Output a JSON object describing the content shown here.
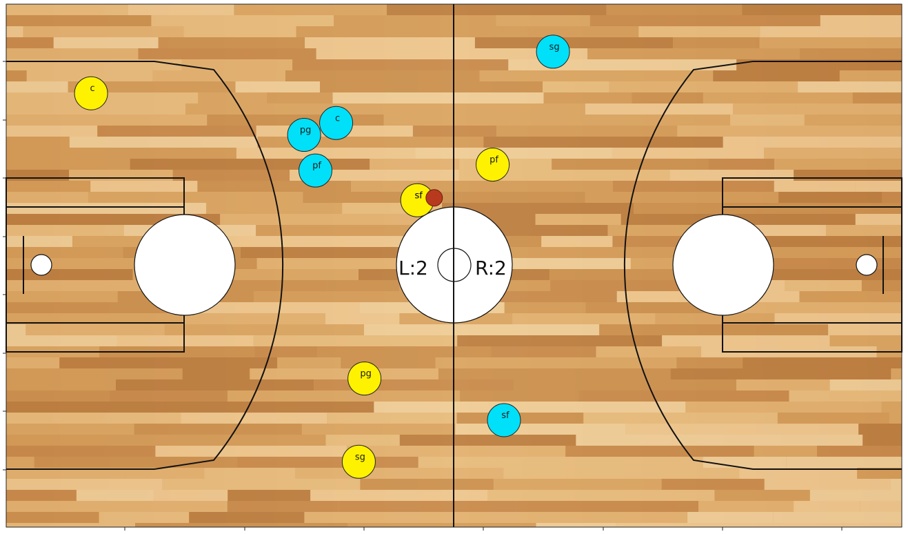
{
  "score": {
    "left_text": "L:2",
    "right_text": "R:2"
  },
  "colors": {
    "team_left": "#fff200",
    "team_right": "#00e0f8",
    "ball": "#b83a1e",
    "court_line": "#111111",
    "wood_light": "#e6b878",
    "wood_dark": "#b4743a"
  },
  "players": [
    {
      "team": "left",
      "label": "c",
      "x": 4.5,
      "y": 36.5
    },
    {
      "team": "left",
      "label": "pf",
      "x": 25.8,
      "y": 30.5
    },
    {
      "team": "left",
      "label": "sf",
      "x": 21.8,
      "y": 27.5
    },
    {
      "team": "left",
      "label": "pg",
      "x": 19.0,
      "y": 12.5
    },
    {
      "team": "left",
      "label": "sg",
      "x": 18.7,
      "y": 5.5
    },
    {
      "team": "right",
      "label": "sg",
      "x": 29.0,
      "y": 40.0
    },
    {
      "team": "right",
      "label": "c",
      "x": 17.5,
      "y": 34.0
    },
    {
      "team": "right",
      "label": "pg",
      "x": 15.8,
      "y": 33.0
    },
    {
      "team": "right",
      "label": "pf",
      "x": 16.4,
      "y": 30.0
    },
    {
      "team": "right",
      "label": "sf",
      "x": 26.4,
      "y": 9.0
    }
  ],
  "ball": {
    "x": 22.7,
    "y": 27.7
  }
}
